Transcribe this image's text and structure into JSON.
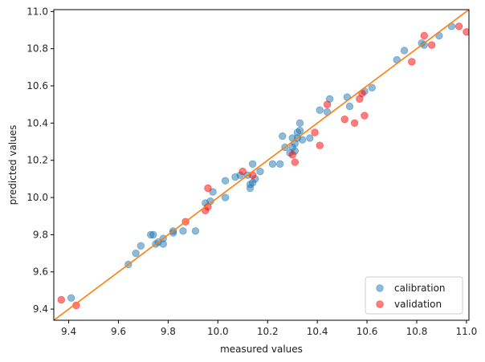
{
  "chart_data": {
    "type": "scatter",
    "title": "",
    "xlabel": "measured values",
    "ylabel": "predicted values",
    "xlim": [
      9.34,
      11.01
    ],
    "ylim": [
      9.34,
      11.01
    ],
    "xticks": [
      9.4,
      9.6,
      9.8,
      10.0,
      10.2,
      10.4,
      10.6,
      10.8,
      11.0
    ],
    "yticks": [
      9.4,
      9.6,
      9.8,
      10.0,
      10.2,
      10.4,
      10.6,
      10.8,
      11.0
    ],
    "grid": false,
    "legend": "bottom-right",
    "reference_line": {
      "from": [
        9.34,
        9.34
      ],
      "to": [
        11.01,
        11.01
      ],
      "color": "#ff7f0e"
    },
    "series": [
      {
        "name": "calibration",
        "color": "#1f77b4",
        "points": [
          [
            9.41,
            9.46
          ],
          [
            9.64,
            9.64
          ],
          [
            9.67,
            9.7
          ],
          [
            9.69,
            9.74
          ],
          [
            9.73,
            9.8
          ],
          [
            9.74,
            9.8
          ],
          [
            9.75,
            9.75
          ],
          [
            9.76,
            9.76
          ],
          [
            9.78,
            9.78
          ],
          [
            9.78,
            9.75
          ],
          [
            9.82,
            9.81
          ],
          [
            9.82,
            9.82
          ],
          [
            9.86,
            9.82
          ],
          [
            9.91,
            9.82
          ],
          [
            9.95,
            9.97
          ],
          [
            9.97,
            9.98
          ],
          [
            9.98,
            10.03
          ],
          [
            10.03,
            10.0
          ],
          [
            10.03,
            10.09
          ],
          [
            10.07,
            10.11
          ],
          [
            10.09,
            10.12
          ],
          [
            10.12,
            10.12
          ],
          [
            10.13,
            10.07
          ],
          [
            10.13,
            10.05
          ],
          [
            10.14,
            10.08
          ],
          [
            10.14,
            10.18
          ],
          [
            10.15,
            10.1
          ],
          [
            10.17,
            10.14
          ],
          [
            10.22,
            10.18
          ],
          [
            10.25,
            10.18
          ],
          [
            10.26,
            10.33
          ],
          [
            10.27,
            10.27
          ],
          [
            10.29,
            10.24
          ],
          [
            10.3,
            10.27
          ],
          [
            10.3,
            10.32
          ],
          [
            10.31,
            10.25
          ],
          [
            10.31,
            10.29
          ],
          [
            10.32,
            10.32
          ],
          [
            10.32,
            10.35
          ],
          [
            10.33,
            10.36
          ],
          [
            10.33,
            10.4
          ],
          [
            10.34,
            10.31
          ],
          [
            10.37,
            10.32
          ],
          [
            10.41,
            10.47
          ],
          [
            10.44,
            10.46
          ],
          [
            10.45,
            10.53
          ],
          [
            10.52,
            10.54
          ],
          [
            10.53,
            10.49
          ],
          [
            10.59,
            10.57
          ],
          [
            10.62,
            10.59
          ],
          [
            10.72,
            10.74
          ],
          [
            10.75,
            10.79
          ],
          [
            10.82,
            10.83
          ],
          [
            10.83,
            10.82
          ],
          [
            10.89,
            10.87
          ],
          [
            10.94,
            10.92
          ]
        ]
      },
      {
        "name": "validation",
        "color": "#ff0000",
        "points": [
          [
            9.37,
            9.45
          ],
          [
            9.43,
            9.42
          ],
          [
            9.87,
            9.87
          ],
          [
            9.95,
            9.93
          ],
          [
            9.96,
            9.95
          ],
          [
            9.96,
            10.05
          ],
          [
            10.1,
            10.14
          ],
          [
            10.14,
            10.12
          ],
          [
            10.3,
            10.23
          ],
          [
            10.31,
            10.19
          ],
          [
            10.39,
            10.35
          ],
          [
            10.41,
            10.28
          ],
          [
            10.44,
            10.5
          ],
          [
            10.51,
            10.42
          ],
          [
            10.55,
            10.4
          ],
          [
            10.57,
            10.53
          ],
          [
            10.58,
            10.56
          ],
          [
            10.59,
            10.44
          ],
          [
            10.78,
            10.73
          ],
          [
            10.83,
            10.87
          ],
          [
            10.86,
            10.82
          ],
          [
            10.97,
            10.92
          ],
          [
            11.0,
            10.89
          ]
        ]
      }
    ]
  }
}
